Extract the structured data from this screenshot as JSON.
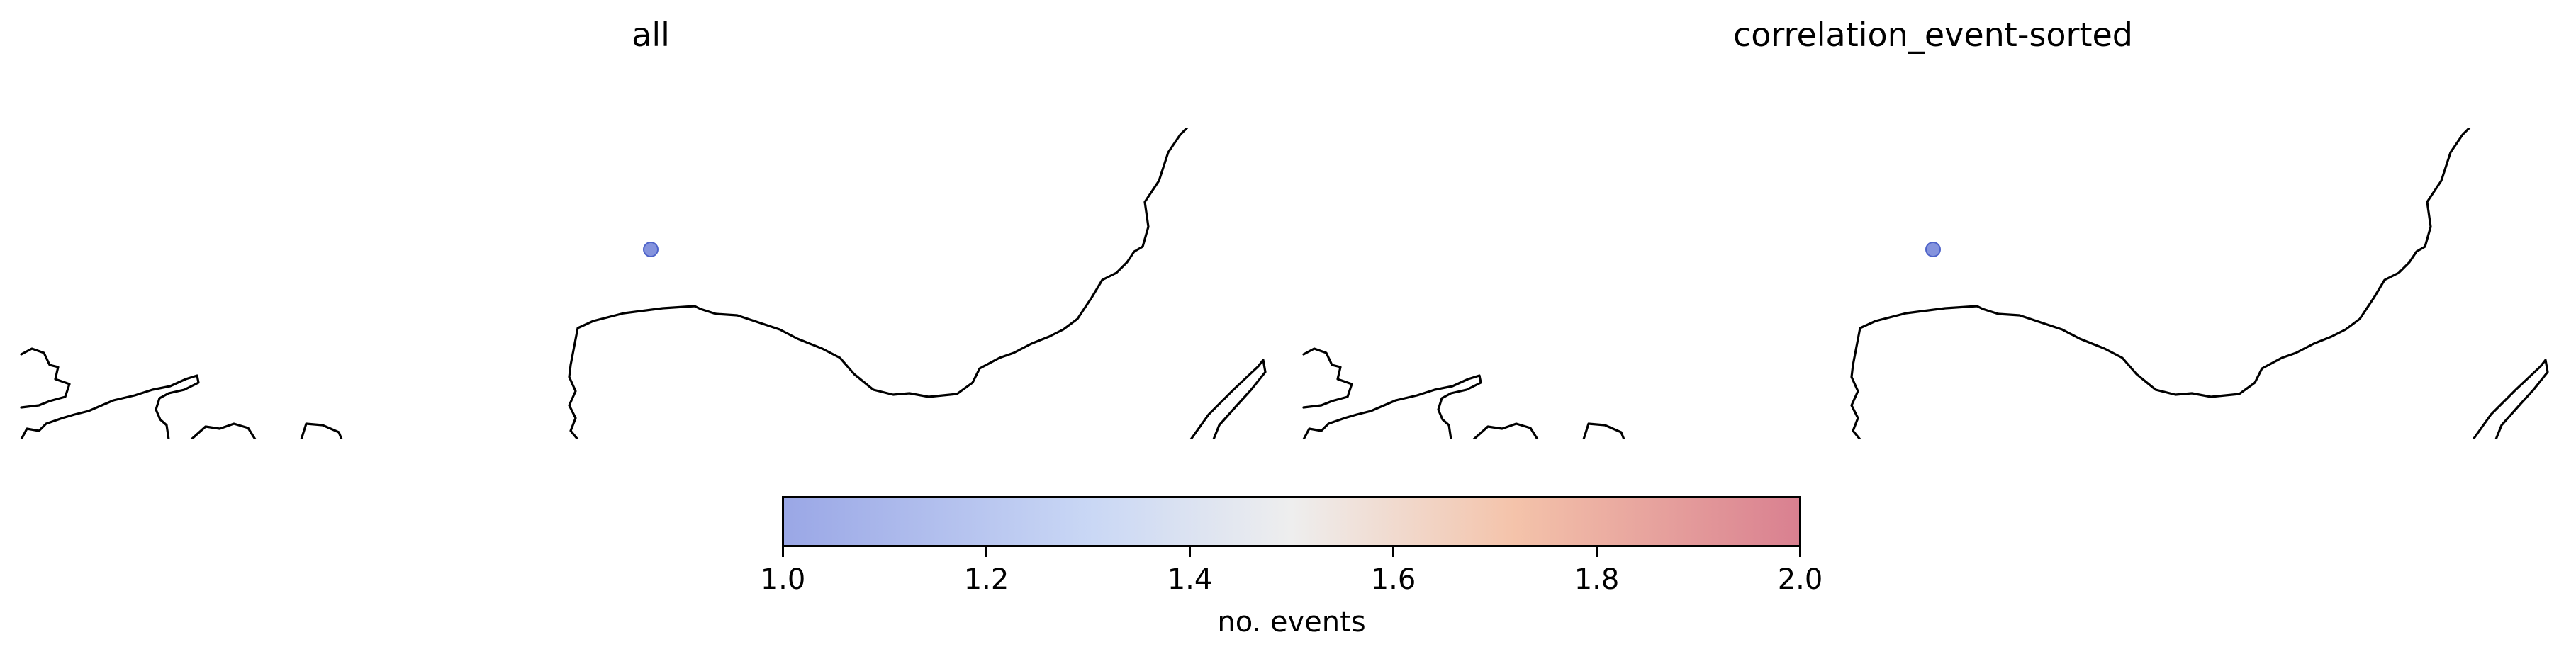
{
  "panels": [
    {
      "title": "all"
    },
    {
      "title": "correlation_event-sorted"
    }
  ],
  "colorbar": {
    "label": "no. events",
    "min": 1.0,
    "max": 2.0,
    "colormap": "coolwarm",
    "ticks": [
      "1.0",
      "1.2",
      "1.4",
      "1.6",
      "1.8",
      "2.0"
    ],
    "start_color": "#9aa7e6",
    "mid_color": "#eeeeee",
    "end_color": "#d98090"
  },
  "events": [
    {
      "no_events": 1.0,
      "color": "#5b6fd1"
    }
  ]
}
